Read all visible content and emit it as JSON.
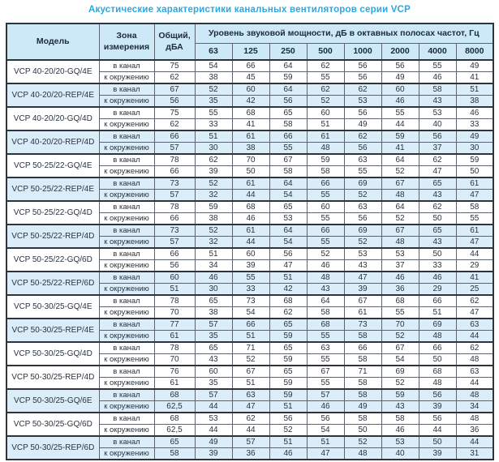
{
  "title": "Акустические характеристики канальных вентиляторов  серии VCP",
  "colors": {
    "title_text": "#2ba8df",
    "header_bg": "#cde8f6",
    "shaded_row_bg": "#dbedf9",
    "body_text": "#2a333e",
    "grid_border": "#5d646d"
  },
  "table": {
    "headers": {
      "model": "Модель",
      "zone": "Зона измерения",
      "total": "Общий, дБА",
      "levels": "Уровень звуковой мощности, дБ в октавных полосах частот, Гц"
    },
    "frequencies": [
      "63",
      "125",
      "250",
      "500",
      "1000",
      "2000",
      "4000",
      "8000"
    ],
    "zone_labels": [
      "в канал",
      "к окружению"
    ],
    "rows": [
      {
        "model": "VCP 40-20/20-GQ/4E",
        "shaded": false,
        "in": {
          "total": "75",
          "levels": [
            "54",
            "66",
            "64",
            "62",
            "56",
            "56",
            "55",
            "49"
          ]
        },
        "out": {
          "total": "62",
          "levels": [
            "38",
            "45",
            "59",
            "55",
            "56",
            "49",
            "46",
            "41"
          ]
        }
      },
      {
        "model": "VCP 40-20/20-REP/4E",
        "shaded": true,
        "in": {
          "total": "67",
          "levels": [
            "52",
            "60",
            "64",
            "62",
            "62",
            "60",
            "58",
            "51"
          ]
        },
        "out": {
          "total": "56",
          "levels": [
            "35",
            "42",
            "56",
            "52",
            "53",
            "46",
            "43",
            "38"
          ]
        }
      },
      {
        "model": "VCP 40-20/20-GQ/4D",
        "shaded": false,
        "in": {
          "total": "75",
          "levels": [
            "55",
            "68",
            "65",
            "60",
            "56",
            "55",
            "53",
            "46"
          ]
        },
        "out": {
          "total": "62",
          "levels": [
            "33",
            "41",
            "58",
            "51",
            "49",
            "44",
            "40",
            "33"
          ]
        }
      },
      {
        "model": "VCP 40-20/20-REP/4D",
        "shaded": true,
        "in": {
          "total": "66",
          "levels": [
            "51",
            "61",
            "66",
            "61",
            "62",
            "59",
            "56",
            "49"
          ]
        },
        "out": {
          "total": "57",
          "levels": [
            "30",
            "38",
            "55",
            "48",
            "56",
            "41",
            "37",
            "30"
          ]
        }
      },
      {
        "model": "VCP 50-25/22-GQ/4E",
        "shaded": false,
        "in": {
          "total": "78",
          "levels": [
            "62",
            "70",
            "67",
            "59",
            "63",
            "64",
            "62",
            "59"
          ]
        },
        "out": {
          "total": "66",
          "levels": [
            "39",
            "50",
            "58",
            "58",
            "55",
            "52",
            "47",
            "50"
          ]
        }
      },
      {
        "model": "VCP 50-25/22-REP/4E",
        "shaded": true,
        "in": {
          "total": "73",
          "levels": [
            "52",
            "61",
            "64",
            "66",
            "69",
            "67",
            "65",
            "61"
          ]
        },
        "out": {
          "total": "57",
          "levels": [
            "32",
            "44",
            "54",
            "55",
            "52",
            "48",
            "43",
            "47"
          ]
        }
      },
      {
        "model": "VCP 50-25/22-GQ/4D",
        "shaded": false,
        "in": {
          "total": "78",
          "levels": [
            "59",
            "68",
            "65",
            "60",
            "63",
            "64",
            "62",
            "58"
          ]
        },
        "out": {
          "total": "66",
          "levels": [
            "38",
            "46",
            "53",
            "55",
            "56",
            "52",
            "50",
            "55"
          ]
        }
      },
      {
        "model": "VCP 50-25/22-REP/4D",
        "shaded": true,
        "in": {
          "total": "73",
          "levels": [
            "52",
            "61",
            "64",
            "66",
            "69",
            "67",
            "65",
            "61"
          ]
        },
        "out": {
          "total": "57",
          "levels": [
            "32",
            "44",
            "54",
            "55",
            "52",
            "48",
            "43",
            "47"
          ]
        }
      },
      {
        "model": "VCP 50-25/22-GQ/6D",
        "shaded": false,
        "in": {
          "total": "66",
          "levels": [
            "51",
            "60",
            "56",
            "52",
            "53",
            "53",
            "50",
            "44"
          ]
        },
        "out": {
          "total": "56",
          "levels": [
            "34",
            "39",
            "47",
            "46",
            "43",
            "37",
            "33",
            "29"
          ]
        }
      },
      {
        "model": "VCP 50-25/22-REP/6D",
        "shaded": true,
        "in": {
          "total": "60",
          "levels": [
            "46",
            "55",
            "51",
            "48",
            "47",
            "46",
            "46",
            "41"
          ]
        },
        "out": {
          "total": "51",
          "levels": [
            "30",
            "33",
            "42",
            "43",
            "39",
            "36",
            "29",
            "25"
          ]
        }
      },
      {
        "model": "VCP 50-30/25-GQ/4E",
        "shaded": false,
        "in": {
          "total": "78",
          "levels": [
            "65",
            "73",
            "68",
            "64",
            "67",
            "68",
            "66",
            "62"
          ]
        },
        "out": {
          "total": "70",
          "levels": [
            "38",
            "54",
            "62",
            "58",
            "61",
            "55",
            "51",
            "47"
          ]
        }
      },
      {
        "model": "VCP 50-30/25-REP/4E",
        "shaded": true,
        "in": {
          "total": "77",
          "levels": [
            "57",
            "66",
            "65",
            "68",
            "73",
            "70",
            "69",
            "63"
          ]
        },
        "out": {
          "total": "61",
          "levels": [
            "35",
            "51",
            "59",
            "55",
            "58",
            "52",
            "48",
            "44"
          ]
        }
      },
      {
        "model": "VCP 50-30/25-GQ/4D",
        "shaded": false,
        "in": {
          "total": "78",
          "levels": [
            "65",
            "71",
            "65",
            "63",
            "66",
            "67",
            "66",
            "62"
          ]
        },
        "out": {
          "total": "70",
          "levels": [
            "43",
            "52",
            "59",
            "55",
            "58",
            "54",
            "50",
            "48"
          ]
        }
      },
      {
        "model": "VCP 50-30/25-REP/4D",
        "shaded": false,
        "in": {
          "total": "76",
          "levels": [
            "60",
            "67",
            "65",
            "67",
            "71",
            "69",
            "68",
            "63"
          ]
        },
        "out": {
          "total": "61",
          "levels": [
            "35",
            "51",
            "59",
            "55",
            "58",
            "52",
            "48",
            "44"
          ]
        }
      },
      {
        "model": "VCP 50-30/25-GQ/6E",
        "shaded": true,
        "in": {
          "total": "68",
          "levels": [
            "57",
            "63",
            "59",
            "57",
            "58",
            "59",
            "56",
            "48"
          ]
        },
        "out": {
          "total": "62,5",
          "levels": [
            "44",
            "47",
            "51",
            "46",
            "49",
            "43",
            "39",
            "34"
          ]
        }
      },
      {
        "model": "VCP 50-30/25-GQ/6D",
        "shaded": false,
        "in": {
          "total": "68",
          "levels": [
            "53",
            "62",
            "56",
            "56",
            "58",
            "58",
            "56",
            "48"
          ]
        },
        "out": {
          "total": "62,5",
          "levels": [
            "44",
            "44",
            "52",
            "54",
            "50",
            "46",
            "44",
            "36"
          ]
        }
      },
      {
        "model": "VCP 50-30/25-REP/6D",
        "shaded": true,
        "in": {
          "total": "65",
          "levels": [
            "49",
            "57",
            "51",
            "51",
            "52",
            "53",
            "50",
            "44"
          ]
        },
        "out": {
          "total": "58",
          "levels": [
            "39",
            "36",
            "46",
            "47",
            "48",
            "40",
            "39",
            "31"
          ]
        }
      }
    ]
  }
}
